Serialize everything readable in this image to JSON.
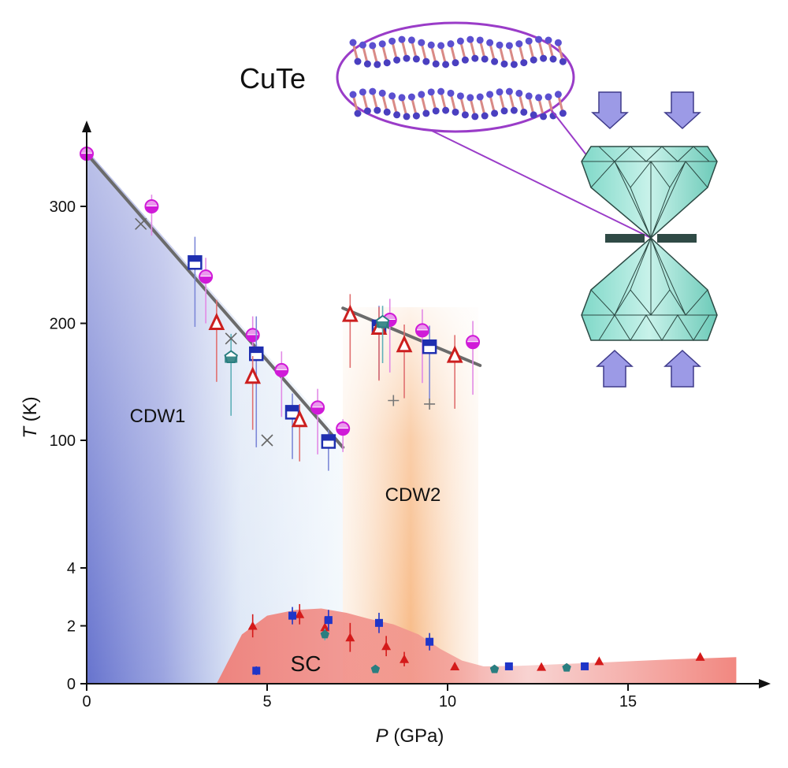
{
  "chart_data": {
    "type": "scatter",
    "title": "",
    "compound_label": "CuTe",
    "xlabel": {
      "symbol": "P",
      "unit": " (GPa)"
    },
    "ylabel": {
      "symbol": "T",
      "unit": " (K)"
    },
    "xlim": [
      0,
      18
    ],
    "x_ticks": [
      0,
      5,
      10,
      15
    ],
    "x_tick_labels": [
      "0",
      "5",
      "10",
      "15"
    ],
    "y_segments": [
      {
        "range": [
          0,
          4
        ],
        "ticks": [
          0,
          2,
          4
        ]
      },
      {
        "range": [
          100,
          300
        ],
        "ticks": [
          100,
          200,
          300
        ]
      }
    ],
    "y_tick_labels": [
      "0",
      "2",
      "4",
      "100",
      "200",
      "300"
    ],
    "grid": false,
    "regions": [
      {
        "label": "CDW1",
        "color": "#5563c8"
      },
      {
        "label": "CDW2",
        "color": "#f5a15a"
      },
      {
        "label": "SC",
        "color": "#f07a72"
      }
    ],
    "sc_dome": {
      "x": [
        3.6,
        4.3,
        5.0,
        5.8,
        6.5,
        7.2,
        7.8,
        8.5,
        9.2,
        9.8,
        10.4,
        11.0,
        12.0,
        14.0,
        16.0,
        18.0
      ],
      "T": [
        0,
        1.7,
        2.35,
        2.55,
        2.6,
        2.45,
        2.25,
        2.05,
        1.7,
        1.2,
        0.8,
        0.6,
        0.62,
        0.72,
        0.83,
        0.92
      ]
    },
    "fit_lines": [
      {
        "x": [
          0,
          7.1
        ],
        "T": [
          345,
          94
        ]
      },
      {
        "x": [
          7.1,
          10.9
        ],
        "T": [
          213,
          164
        ]
      }
    ],
    "series": [
      {
        "marker": "circle-half",
        "color": "#d01ad8",
        "points": [
          {
            "x": 0.0,
            "y": 345,
            "err": 0
          },
          {
            "x": 1.8,
            "y": 300,
            "err": 25
          },
          {
            "x": 3.3,
            "y": 240,
            "err": 40
          },
          {
            "x": 4.6,
            "y": 190,
            "err": 40
          },
          {
            "x": 5.4,
            "y": 160,
            "err": 40
          },
          {
            "x": 6.4,
            "y": 128,
            "err": 40
          },
          {
            "x": 7.1,
            "y": 110,
            "err": 20
          },
          {
            "x": 8.4,
            "y": 203,
            "err": 45
          },
          {
            "x": 9.3,
            "y": 194,
            "err": 45
          },
          {
            "x": 10.7,
            "y": 184,
            "err": 45
          }
        ]
      },
      {
        "marker": "square-half",
        "color": "#1f2fb0",
        "points": [
          {
            "x": 3.0,
            "y": 252,
            "err": 55
          },
          {
            "x": 4.7,
            "y": 174,
            "err": 80
          },
          {
            "x": 5.7,
            "y": 124,
            "err": 40
          },
          {
            "x": 6.7,
            "y": 99,
            "err": 25
          },
          {
            "x": 8.1,
            "y": 197,
            "err": 45
          },
          {
            "x": 9.5,
            "y": 180,
            "err": 45
          }
        ]
      },
      {
        "marker": "triangle-open",
        "color": "#cc1f1f",
        "points": [
          {
            "x": 3.6,
            "y": 200,
            "err": 50
          },
          {
            "x": 4.6,
            "y": 154,
            "err": 45
          },
          {
            "x": 5.9,
            "y": 117,
            "err": 35
          },
          {
            "x": 7.3,
            "y": 207,
            "err": 45
          },
          {
            "x": 8.1,
            "y": 196,
            "err": 45
          },
          {
            "x": 8.8,
            "y": 181,
            "err": 45
          },
          {
            "x": 10.2,
            "y": 172,
            "err": 45
          }
        ]
      },
      {
        "marker": "pentagon",
        "color": "#2a7e80",
        "points": [
          {
            "x": 4.0,
            "y": 171,
            "err": 50
          },
          {
            "x": 8.2,
            "y": 201,
            "err": 35
          }
        ]
      },
      {
        "marker": "x-cross",
        "color": "#666666",
        "points": [
          {
            "x": 1.5,
            "y": 285
          },
          {
            "x": 4.0,
            "y": 187
          },
          {
            "x": 5.0,
            "y": 100
          }
        ]
      },
      {
        "marker": "plus",
        "color": "#777777",
        "points": [
          {
            "x": 8.5,
            "y": 134
          },
          {
            "x": 9.5,
            "y": 131
          }
        ]
      },
      {
        "marker": "triangle-filled",
        "color": "#d41a1a",
        "points": [
          {
            "x": 4.6,
            "y": 2.0,
            "err": 0.4
          },
          {
            "x": 5.9,
            "y": 2.4,
            "err": 0.35
          },
          {
            "x": 6.6,
            "y": 1.95,
            "err": 0.35
          },
          {
            "x": 7.3,
            "y": 1.6,
            "err": 0.5
          },
          {
            "x": 8.3,
            "y": 1.3,
            "err": 0.35
          },
          {
            "x": 8.8,
            "y": 0.85,
            "err": 0.25
          },
          {
            "x": 10.2,
            "y": 0.6,
            "err": 0
          },
          {
            "x": 12.6,
            "y": 0.58,
            "err": 0
          },
          {
            "x": 14.2,
            "y": 0.78,
            "err": 0
          },
          {
            "x": 17.0,
            "y": 0.93,
            "err": 0
          }
        ]
      },
      {
        "marker": "square-filled",
        "color": "#1f35c8",
        "points": [
          {
            "x": 4.7,
            "y": 0.45,
            "err": 0.15
          },
          {
            "x": 5.7,
            "y": 2.35,
            "err": 0.3
          },
          {
            "x": 6.7,
            "y": 2.2,
            "err": 0.35
          },
          {
            "x": 8.1,
            "y": 2.1,
            "err": 0.35
          },
          {
            "x": 9.5,
            "y": 1.45,
            "err": 0.3
          },
          {
            "x": 11.7,
            "y": 0.6,
            "err": 0
          },
          {
            "x": 13.8,
            "y": 0.6,
            "err": 0
          }
        ]
      },
      {
        "marker": "pentagon-filled",
        "color": "#2a7e80",
        "points": [
          {
            "x": 6.6,
            "y": 1.7,
            "err": 0.2
          },
          {
            "x": 8.0,
            "y": 0.5,
            "err": 0
          },
          {
            "x": 11.3,
            "y": 0.5,
            "err": 0
          },
          {
            "x": 13.3,
            "y": 0.55,
            "err": 0
          }
        ]
      }
    ]
  }
}
